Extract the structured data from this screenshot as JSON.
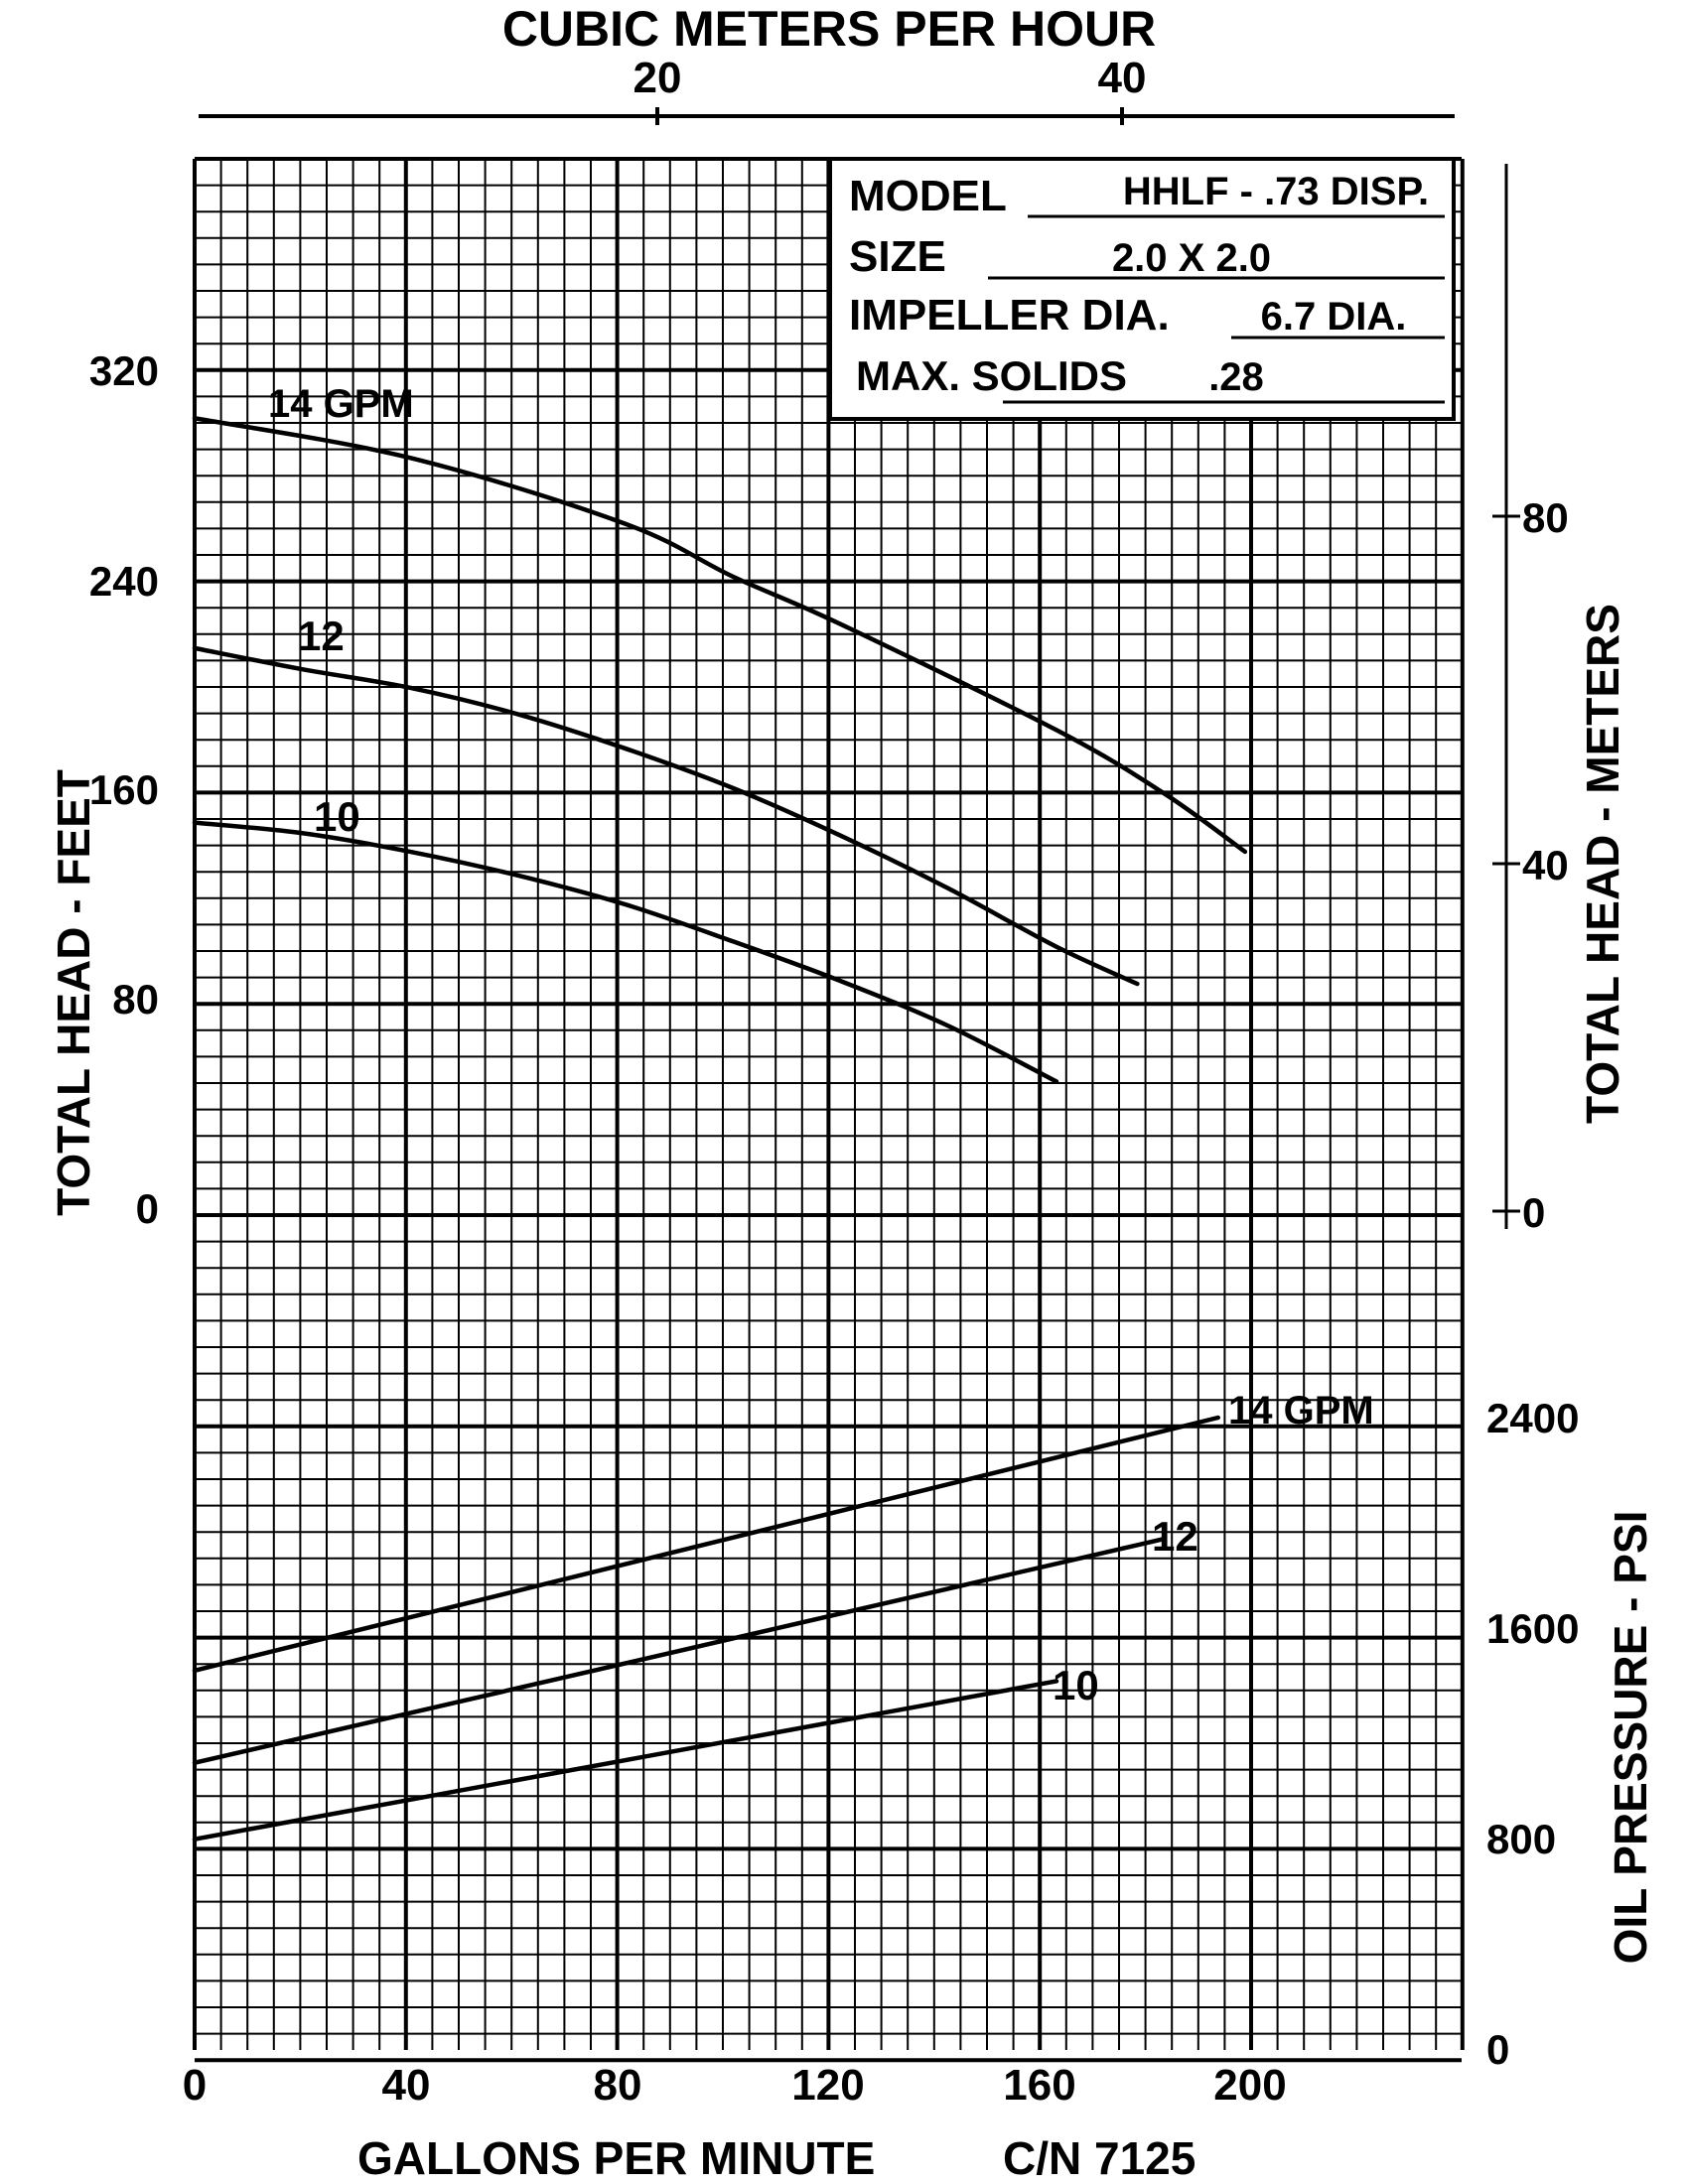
{
  "chart_data": {
    "type": "line",
    "top_axis": {
      "label": "CUBIC METERS PER HOUR",
      "ticks": [
        20,
        40
      ]
    },
    "bottom_axis": {
      "label": "GALLONS PER MINUTE",
      "code": "C/N 7125",
      "ticks": [
        0,
        40,
        80,
        120,
        160,
        200
      ],
      "range": [
        0,
        240
      ]
    },
    "left_axis": {
      "label": "TOTAL HEAD - FEET",
      "ticks": [
        0,
        80,
        160,
        240,
        320
      ],
      "range": [
        0,
        320
      ]
    },
    "right_head_axis": {
      "label": "TOTAL HEAD - METERS",
      "ticks": [
        0,
        40,
        80
      ]
    },
    "right_pressure_axis": {
      "label": "OIL PRESSURE - PSI",
      "ticks": [
        0,
        800,
        1600,
        2400
      ],
      "range": [
        0,
        2400
      ]
    },
    "info_box": {
      "model_label": "MODEL",
      "model_value": "HHLF - .73 DISP.",
      "size_label": "SIZE",
      "size_value": "2.0 X 2.0",
      "impeller_label": "IMPELLER DIA.",
      "impeller_value": "6.7 DIA.",
      "solids_label": "MAX. SOLIDS",
      "solids_value": ".28"
    },
    "head_series": [
      {
        "name": "14 GPM",
        "x": [
          0,
          40,
          80,
          100,
          120,
          160,
          180,
          195
        ],
        "y": [
          300,
          285,
          260,
          240,
          222,
          182,
          158,
          136
        ]
      },
      {
        "name": "12",
        "x": [
          0,
          20,
          40,
          60,
          80,
          100,
          120,
          140,
          160,
          175
        ],
        "y": [
          213,
          205,
          198,
          188,
          175,
          160,
          142,
          122,
          100,
          86
        ]
      },
      {
        "name": "10",
        "x": [
          0,
          20,
          40,
          60,
          80,
          100,
          120,
          140,
          160
        ],
        "y": [
          147,
          143,
          136,
          127,
          116,
          102,
          87,
          70,
          49
        ]
      }
    ],
    "pressure_series": [
      {
        "name": "14 GPM",
        "x": [
          0,
          190
        ],
        "y": [
          1440,
          2400
        ]
      },
      {
        "name": "12",
        "x": [
          0,
          180
        ],
        "y": [
          1090,
          1940
        ]
      },
      {
        "name": "10",
        "x": [
          0,
          160
        ],
        "y": [
          800,
          1400
        ]
      }
    ]
  }
}
